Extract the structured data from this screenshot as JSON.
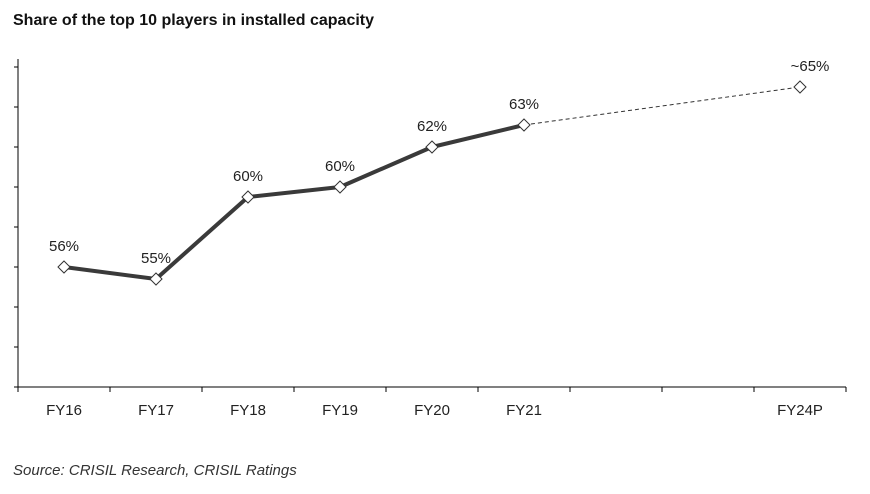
{
  "chart_data": {
    "type": "line",
    "title": "Share of the top 10 players in installed capacity",
    "source": "Source: CRISIL Research, CRISIL Ratings",
    "xlabel": "",
    "ylabel": "",
    "categories": [
      "FY16",
      "FY17",
      "FY18",
      "FY19",
      "FY20",
      "FY21",
      "",
      "",
      "FY24P"
    ],
    "values": [
      56,
      55.4,
      59.5,
      60,
      62,
      63.1,
      null,
      null,
      65
    ],
    "data_labels": [
      "56%",
      "55%",
      "60%",
      "60%",
      "62%",
      "63%",
      "",
      "",
      "~65%"
    ],
    "projected_from_index": 5,
    "ylim": [
      50,
      66
    ],
    "ytick_step": 2,
    "ytick_labels_shown": false,
    "grid": false,
    "legend": "none",
    "colors": {
      "line": "#3a3a3a",
      "projection": "#333333",
      "marker_fill": "#ffffff",
      "axis": "#000000"
    },
    "marker": "diamond-open",
    "projection_style": "dashed"
  }
}
